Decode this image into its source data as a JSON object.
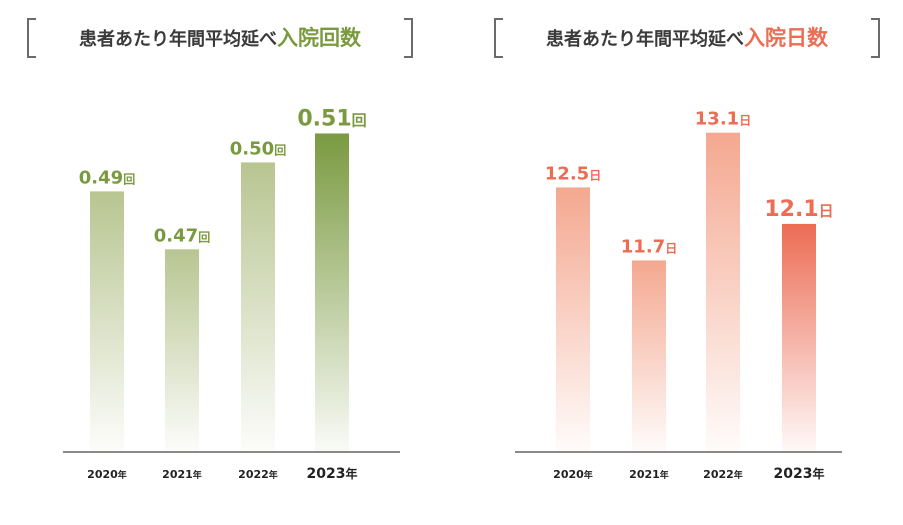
{
  "charts": [
    {
      "title_prefix": "患者あたり年間平均延べ",
      "title_highlight": "入院回数",
      "accent_color": "#7a9a40",
      "light_color": "#b8c591",
      "unit": "回"
    },
    {
      "title_prefix": "患者あたり年間平均延べ",
      "title_highlight": "入院日数",
      "accent_color": "#ec6c54",
      "light_color": "#f4a890",
      "unit": "日"
    }
  ],
  "chart_data": [
    {
      "type": "bar",
      "title": "患者あたり年間平均延べ入院回数",
      "categories": [
        "2020",
        "2021",
        "2022",
        "2023"
      ],
      "category_suffix": "年",
      "values": [
        0.49,
        0.47,
        0.5,
        0.51
      ],
      "value_labels": [
        "0.49",
        "0.47",
        "0.50",
        "0.51"
      ],
      "unit": "回",
      "xlabel": "",
      "ylabel": "",
      "ylim": [
        0.4,
        0.515
      ],
      "highlight_index": 3
    },
    {
      "type": "bar",
      "title": "患者あたり年間平均延べ入院日数",
      "categories": [
        "2020",
        "2021",
        "2022",
        "2023"
      ],
      "category_suffix": "年",
      "values": [
        12.5,
        11.7,
        13.1,
        12.1
      ],
      "value_labels": [
        "12.5",
        "11.7",
        "13.1",
        "12.1"
      ],
      "unit": "日",
      "xlabel": "",
      "ylabel": "",
      "ylim": [
        9.6,
        13.25
      ],
      "highlight_index": 3
    }
  ]
}
